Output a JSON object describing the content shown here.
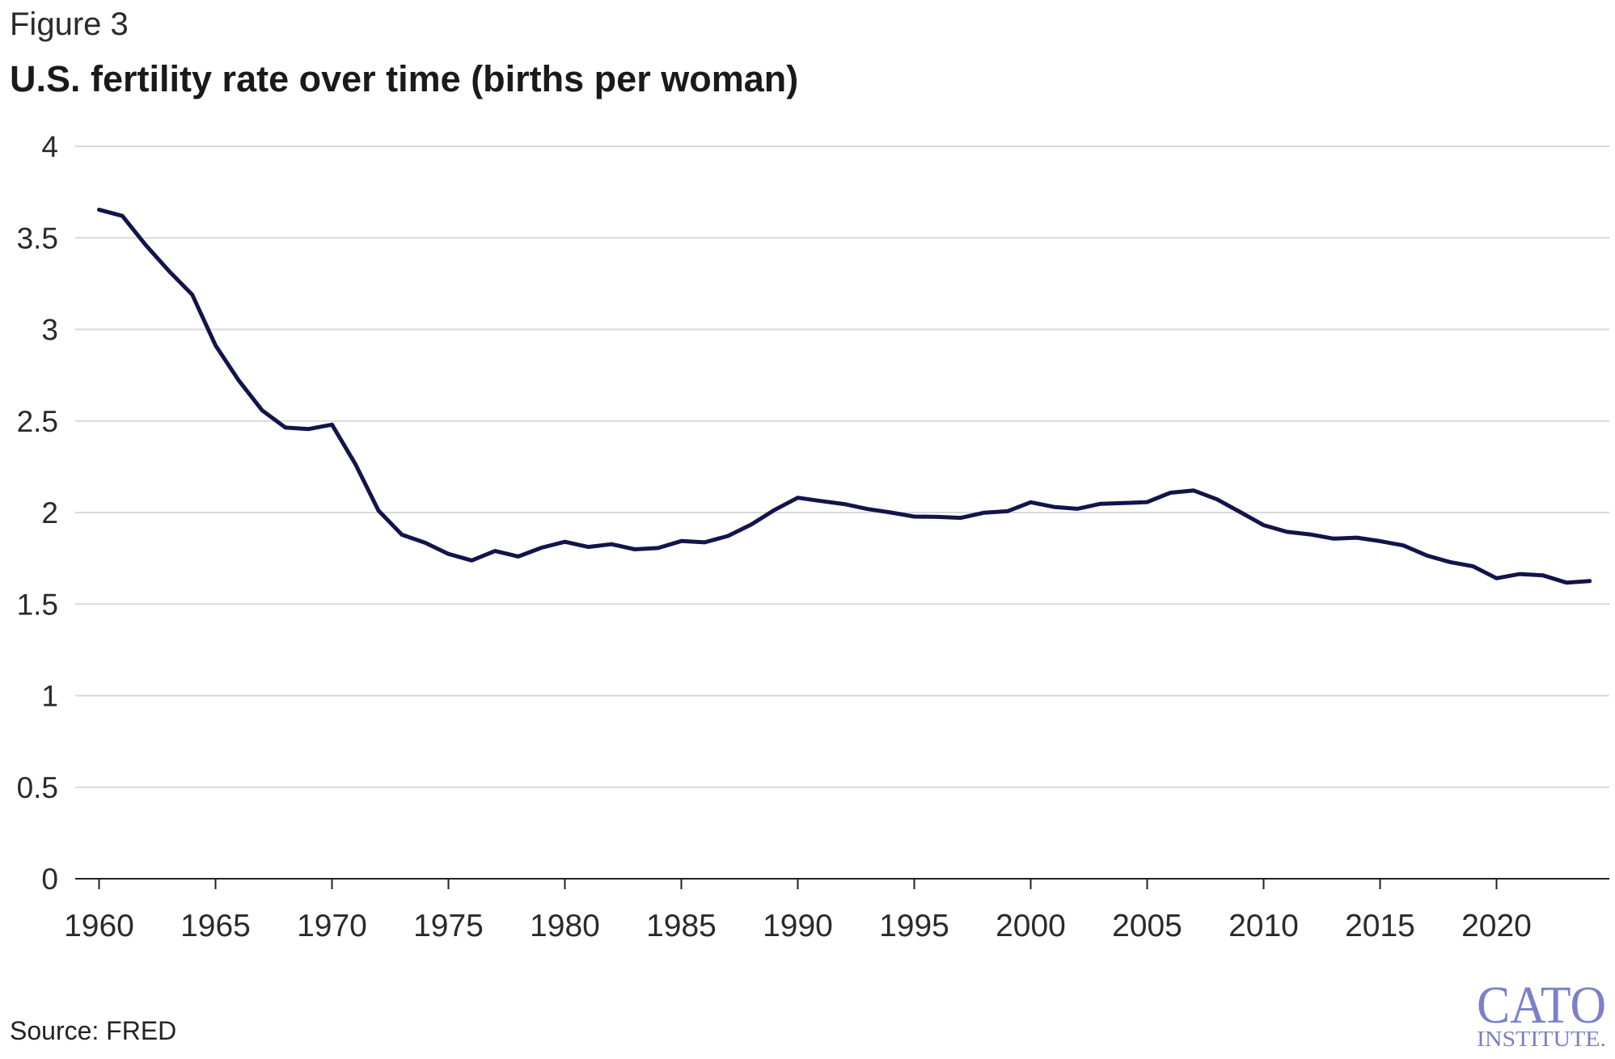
{
  "figure_label": "Figure 3",
  "source": "Source: FRED",
  "logo": {
    "name": "CATO",
    "subtitle": "INSTITUTE.",
    "color": "#7b80c8"
  },
  "colors": {
    "line": "#12144a",
    "grid": "#d9d9d9",
    "axis": "#222222"
  },
  "chart_data": {
    "type": "line",
    "title": "U.S. fertility rate over time (births per woman)",
    "xlabel": "",
    "ylabel": "",
    "xlim": [
      1959,
      2025
    ],
    "ylim": [
      0,
      4
    ],
    "x_ticks": [
      1960,
      1965,
      1970,
      1975,
      1980,
      1985,
      1990,
      1995,
      2000,
      2005,
      2010,
      2015,
      2020
    ],
    "y_ticks": [
      0,
      0.5,
      1,
      1.5,
      2,
      2.5,
      3,
      3.5,
      4
    ],
    "grid": "horizontal",
    "legend": "none",
    "series": [
      {
        "x": [
          1960,
          1961,
          1962,
          1963,
          1964,
          1965,
          1966,
          1967,
          1968,
          1969,
          1970,
          1971,
          1972,
          1973,
          1974,
          1975,
          1976,
          1977,
          1978,
          1979,
          1980,
          1981,
          1982,
          1983,
          1984,
          1985,
          1986,
          1987,
          1988,
          1989,
          1990,
          1991,
          1992,
          1993,
          1994,
          1995,
          1996,
          1997,
          1998,
          1999,
          2000,
          2001,
          2002,
          2003,
          2004,
          2005,
          2006,
          2007,
          2008,
          2009,
          2010,
          2011,
          2012,
          2013,
          2014,
          2015,
          2016,
          2017,
          2018,
          2019,
          2020,
          2021,
          2022,
          2023,
          2024
        ],
        "values": [
          3.654,
          3.62,
          3.461,
          3.319,
          3.19,
          2.913,
          2.721,
          2.558,
          2.464,
          2.456,
          2.48,
          2.266,
          2.01,
          1.879,
          1.835,
          1.774,
          1.738,
          1.79,
          1.76,
          1.808,
          1.84,
          1.812,
          1.827,
          1.799,
          1.806,
          1.844,
          1.837,
          1.872,
          1.934,
          2.014,
          2.081,
          2.0625,
          2.046,
          2.019,
          2.0,
          1.978,
          1.976,
          1.971,
          1.999,
          2.007,
          2.056,
          2.0305,
          2.0205,
          2.0475,
          2.0515,
          2.057,
          2.108,
          2.12,
          2.072,
          2.002,
          1.931,
          1.8945,
          1.8805,
          1.8575,
          1.8625,
          1.8435,
          1.8205,
          1.7655,
          1.7295,
          1.706,
          1.641,
          1.664,
          1.6565,
          1.617,
          1.626
        ]
      }
    ]
  }
}
